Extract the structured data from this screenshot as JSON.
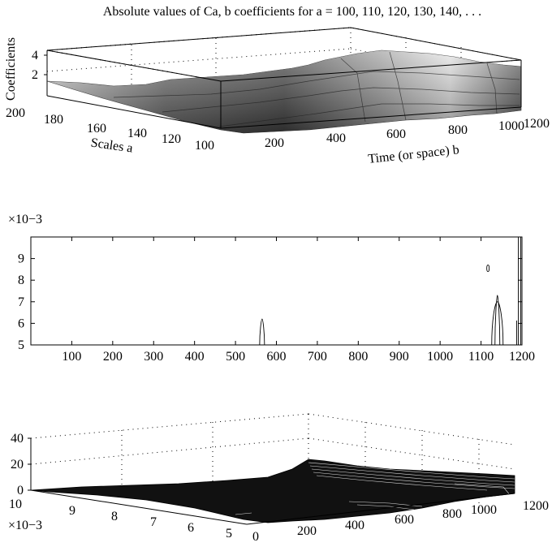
{
  "chart_data": [
    {
      "type": "surface",
      "title": "Absolute values of Ca, b coefficients for a = 100, 110, 120, 130, 140, . . .",
      "zlabel": "Coefficients",
      "ylabel": "Scales a",
      "xlabel": "Time (or space) b",
      "z_ticks": [
        "2",
        "4"
      ],
      "y_ticks": [
        "200",
        "180",
        "160",
        "140",
        "120",
        "100"
      ],
      "x_ticks": [
        "200",
        "400",
        "600",
        "800",
        "1000",
        "1200"
      ],
      "xlim": [
        0,
        1200
      ],
      "ylim": [
        100,
        200
      ],
      "zlim": [
        0,
        5
      ],
      "grid": true,
      "colormap": "gray",
      "ridge_profile": [
        {
          "b": 0,
          "z": 0.6
        },
        {
          "b": 100,
          "z": 0.8
        },
        {
          "b": 200,
          "z": 1.0
        },
        {
          "b": 300,
          "z": 1.3
        },
        {
          "b": 400,
          "z": 1.6
        },
        {
          "b": 500,
          "z": 1.9
        },
        {
          "b": 570,
          "z": 2.8
        },
        {
          "b": 650,
          "z": 2.2
        },
        {
          "b": 750,
          "z": 2.4
        },
        {
          "b": 850,
          "z": 2.6
        },
        {
          "b": 950,
          "z": 2.8
        },
        {
          "b": 1050,
          "z": 3.2
        },
        {
          "b": 1120,
          "z": 4.2
        },
        {
          "b": 1180,
          "z": 3.0
        },
        {
          "b": 1200,
          "z": 2.8
        }
      ]
    },
    {
      "type": "contour",
      "exponent_label": "×10−3",
      "xlim": [
        0,
        1200
      ],
      "ylim": [
        5,
        10
      ],
      "x_ticks": [
        "100",
        "200",
        "300",
        "400",
        "500",
        "600",
        "700",
        "800",
        "900",
        "1000",
        "1100",
        "1200"
      ],
      "y_ticks": [
        "5",
        "6",
        "7",
        "8",
        "9"
      ],
      "features": [
        {
          "b": 565,
          "y_from": 5.0,
          "y_to": 6.2
        },
        {
          "b": 1117,
          "y_from": 8.4,
          "y_to": 8.7
        },
        {
          "b": 1140,
          "y_from": 5.0,
          "y_to": 7.3
        },
        {
          "b": 1195,
          "y_from": 5.0,
          "y_to": 10.0
        }
      ]
    },
    {
      "type": "surface-mesh",
      "exponent_label": "×10−3",
      "z_ticks": [
        "0",
        "20",
        "40"
      ],
      "y_ticks": [
        "10",
        "9",
        "8",
        "7",
        "6",
        "5"
      ],
      "x_ticks": [
        "0",
        "200",
        "400",
        "600",
        "800",
        "1000",
        "1200"
      ],
      "xlim": [
        0,
        1200
      ],
      "ylim": [
        5,
        10
      ],
      "zlim": [
        0,
        40
      ],
      "grid": true,
      "colormap": "black",
      "ridge_profile": [
        {
          "b": 0,
          "z": 0.5
        },
        {
          "b": 200,
          "z": 1.5
        },
        {
          "b": 400,
          "z": 3.0
        },
        {
          "b": 560,
          "z": 6.0
        },
        {
          "b": 600,
          "z": 9.0
        },
        {
          "b": 800,
          "z": 10.0
        },
        {
          "b": 1000,
          "z": 11.0
        },
        {
          "b": 1200,
          "z": 12.0
        }
      ]
    }
  ]
}
